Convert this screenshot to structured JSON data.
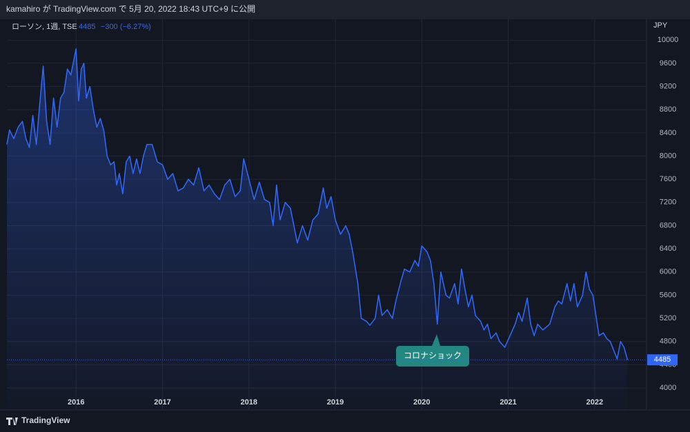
{
  "header": "kamahiro が TradingView.com で 5月 20, 2022 18:43 UTC+9 に公開",
  "footer": "TradingView",
  "chart_data": {
    "type": "line",
    "area": true,
    "y_unit": "JPY",
    "change_label": "−300 (−6.27%)",
    "annotation": "コロナショック",
    "grid": true,
    "xlim": [
      2015.2,
      2022.6
    ],
    "xticks": [
      2016,
      2017,
      2018,
      2019,
      2020,
      2021,
      2022
    ],
    "ylim": [
      3620,
      10360
    ],
    "yticks": [
      4000,
      4400,
      4800,
      5200,
      5600,
      6000,
      6400,
      6800,
      7200,
      7600,
      8000,
      8400,
      8800,
      9200,
      9600,
      10000
    ],
    "series": [
      {
        "name": "ローソン, 1週, TSE",
        "color": "#2f66f5",
        "x": [
          2015.2,
          2015.23,
          2015.28,
          2015.33,
          2015.38,
          2015.42,
          2015.46,
          2015.5,
          2015.54,
          2015.58,
          2015.62,
          2015.66,
          2015.7,
          2015.74,
          2015.78,
          2015.82,
          2015.86,
          2015.9,
          2015.94,
          2015.98,
          2016.0,
          2016.03,
          2016.06,
          2016.09,
          2016.12,
          2016.16,
          2016.2,
          2016.24,
          2016.28,
          2016.32,
          2016.36,
          2016.4,
          2016.44,
          2016.47,
          2016.5,
          2016.54,
          2016.58,
          2016.62,
          2016.66,
          2016.7,
          2016.74,
          2016.78,
          2016.82,
          2016.88,
          2016.94,
          2017.0,
          2017.06,
          2017.12,
          2017.18,
          2017.24,
          2017.3,
          2017.36,
          2017.42,
          2017.48,
          2017.54,
          2017.6,
          2017.66,
          2017.72,
          2017.78,
          2017.84,
          2017.9,
          2017.94,
          2018.0,
          2018.06,
          2018.12,
          2018.18,
          2018.24,
          2018.28,
          2018.32,
          2018.36,
          2018.42,
          2018.48,
          2018.52,
          2018.56,
          2018.62,
          2018.68,
          2018.74,
          2018.8,
          2018.86,
          2018.9,
          2018.95,
          2019.0,
          2019.06,
          2019.12,
          2019.16,
          2019.2,
          2019.26,
          2019.3,
          2019.36,
          2019.4,
          2019.46,
          2019.5,
          2019.54,
          2019.6,
          2019.66,
          2019.7,
          2019.76,
          2019.8,
          2019.86,
          2019.92,
          2019.96,
          2020.0,
          2020.06,
          2020.1,
          2020.14,
          2020.18,
          2020.22,
          2020.28,
          2020.32,
          2020.38,
          2020.42,
          2020.46,
          2020.5,
          2020.54,
          2020.58,
          2020.62,
          2020.68,
          2020.72,
          2020.76,
          2020.8,
          2020.86,
          2020.9,
          2020.96,
          2021.02,
          2021.08,
          2021.12,
          2021.16,
          2021.22,
          2021.26,
          2021.3,
          2021.34,
          2021.4,
          2021.48,
          2021.54,
          2021.58,
          2021.62,
          2021.68,
          2021.72,
          2021.76,
          2021.8,
          2021.86,
          2021.9,
          2021.94,
          2021.98,
          2022.02,
          2022.05,
          2022.1,
          2022.14,
          2022.18,
          2022.22,
          2022.26,
          2022.3,
          2022.34,
          2022.38
        ],
        "values": [
          8200,
          8450,
          8300,
          8500,
          8600,
          8300,
          8150,
          8700,
          8200,
          8900,
          9550,
          8600,
          8200,
          9000,
          8500,
          9000,
          9100,
          9500,
          9400,
          9700,
          9850,
          8950,
          9500,
          9600,
          9000,
          9200,
          8800,
          8500,
          8650,
          8450,
          8000,
          7850,
          7900,
          7500,
          7700,
          7350,
          7900,
          8000,
          7700,
          7950,
          7700,
          8000,
          8200,
          8200,
          7900,
          7850,
          7600,
          7700,
          7400,
          7450,
          7600,
          7500,
          7800,
          7400,
          7500,
          7350,
          7250,
          7500,
          7600,
          7300,
          7400,
          7950,
          7600,
          7250,
          7550,
          7250,
          7200,
          6800,
          7500,
          6900,
          7200,
          7100,
          6800,
          6500,
          6800,
          6550,
          6900,
          7000,
          7450,
          7100,
          7300,
          6900,
          6650,
          6800,
          6650,
          6350,
          5800,
          5200,
          5150,
          5080,
          5200,
          5600,
          5250,
          5350,
          5200,
          5500,
          5850,
          6050,
          6000,
          6200,
          6100,
          6450,
          6350,
          6200,
          5800,
          5100,
          6000,
          5600,
          5550,
          5800,
          5450,
          6050,
          5700,
          5400,
          5600,
          5250,
          5150,
          5000,
          5100,
          4850,
          4950,
          4800,
          4700,
          4900,
          5100,
          5300,
          5150,
          5550,
          5100,
          4900,
          5100,
          5000,
          5100,
          5400,
          5500,
          5450,
          5800,
          5500,
          5800,
          5400,
          5600,
          6000,
          5700,
          5600,
          5200,
          4900,
          4950,
          4850,
          4800,
          4650,
          4500,
          4800,
          4700,
          4485
        ]
      }
    ]
  }
}
